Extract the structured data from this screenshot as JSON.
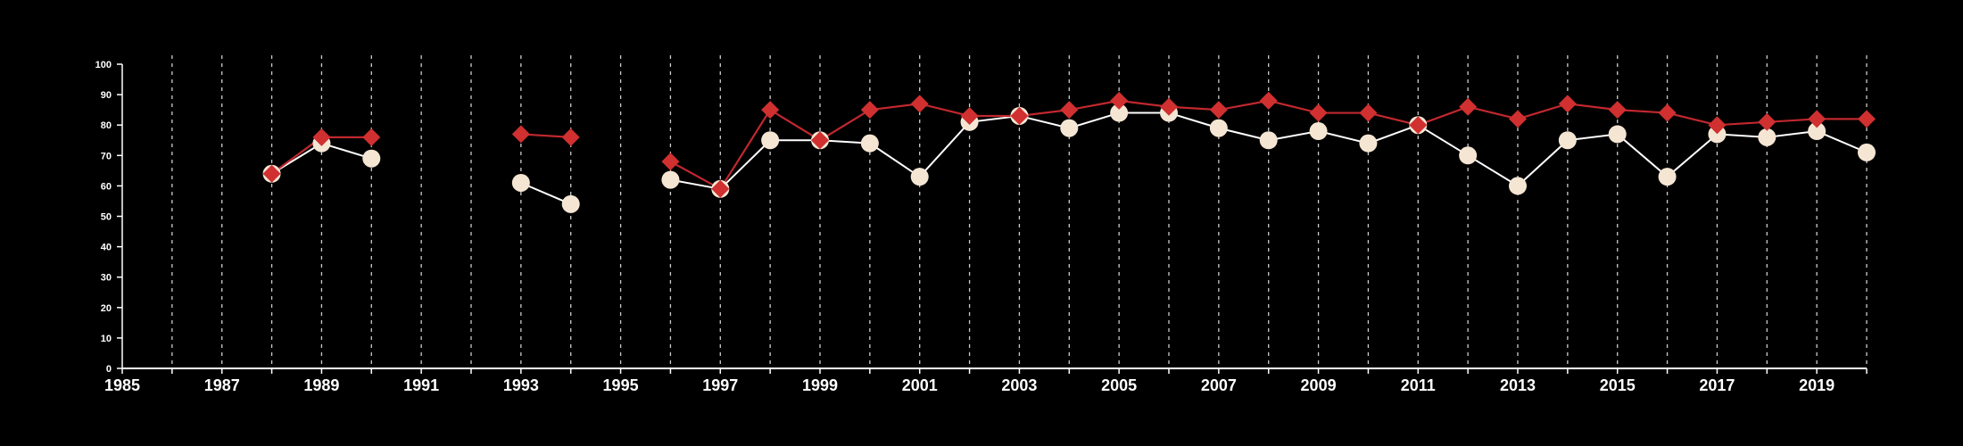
{
  "chart_data": {
    "type": "line",
    "title": "",
    "xlabel": "",
    "ylabel": "",
    "xlim": [
      1985,
      2020
    ],
    "ylim": [
      0,
      100
    ],
    "x_tick_labels": [
      "1985",
      "1987",
      "1989",
      "1991",
      "1993",
      "1995",
      "1997",
      "1999",
      "2001",
      "2003",
      "2005",
      "2007",
      "2009",
      "2011",
      "2013",
      "2015",
      "2017",
      "2019"
    ],
    "y_tick_labels": [
      "0",
      "10",
      "20",
      "30",
      "40",
      "50",
      "60",
      "70",
      "80",
      "90",
      "100"
    ],
    "grid": "vertical dashed lines at every year",
    "legend": "none",
    "x": [
      1988,
      1989,
      1990,
      1993,
      1994,
      1996,
      1997,
      1998,
      1999,
      2000,
      2001,
      2002,
      2003,
      2004,
      2005,
      2006,
      2007,
      2008,
      2009,
      2010,
      2011,
      2012,
      2013,
      2014,
      2015,
      2016,
      2017,
      2018,
      2019,
      2020
    ],
    "series": [
      {
        "marker": "circle",
        "color": "#f5e6d3",
        "line_color": "#ffffff",
        "values": [
          64,
          74,
          69,
          61,
          54,
          62,
          59,
          75,
          75,
          74,
          63,
          81,
          83,
          79,
          84,
          84,
          79,
          75,
          78,
          74,
          80,
          70,
          60,
          75,
          77,
          63,
          77,
          76,
          78,
          71
        ]
      },
      {
        "marker": "diamond",
        "color": "#d03030",
        "line_color": "#c0282e",
        "values": [
          64,
          76,
          76,
          77,
          76,
          68,
          59,
          85,
          75,
          85,
          87,
          83,
          83,
          85,
          88,
          86,
          85,
          88,
          84,
          84,
          80,
          86,
          82,
          87,
          85,
          84,
          80,
          81,
          82,
          82
        ]
      }
    ]
  }
}
